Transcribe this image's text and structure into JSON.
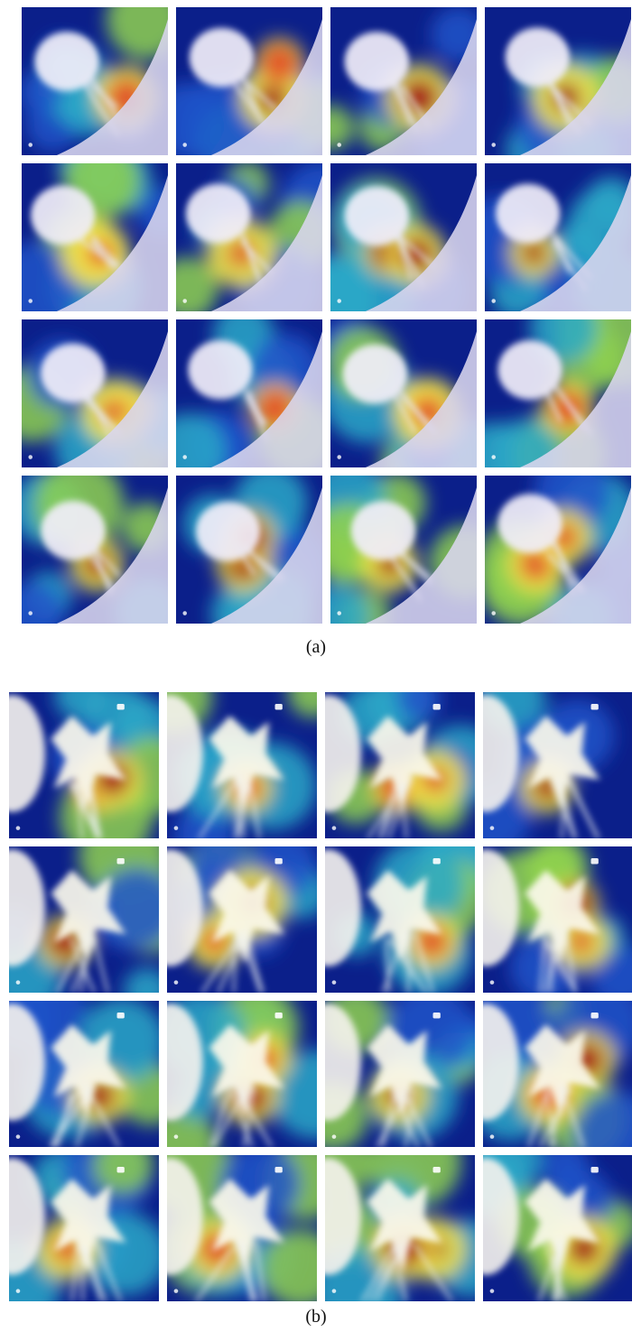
{
  "figure": {
    "panels": [
      {
        "id": "a",
        "label": "(a)",
        "rows": 4,
        "cols": 4,
        "image_kind": "CT nodule saliency heatmap overlay"
      },
      {
        "id": "b",
        "label": "(b)",
        "rows": 4,
        "cols": 4,
        "image_kind": "CT nodule saliency heatmap overlay"
      }
    ],
    "colormap": [
      "#0b1f8a",
      "#1f53c9",
      "#2aa8c8",
      "#8fd14f",
      "#f2e44a",
      "#e0512a",
      "#a3141b"
    ]
  }
}
